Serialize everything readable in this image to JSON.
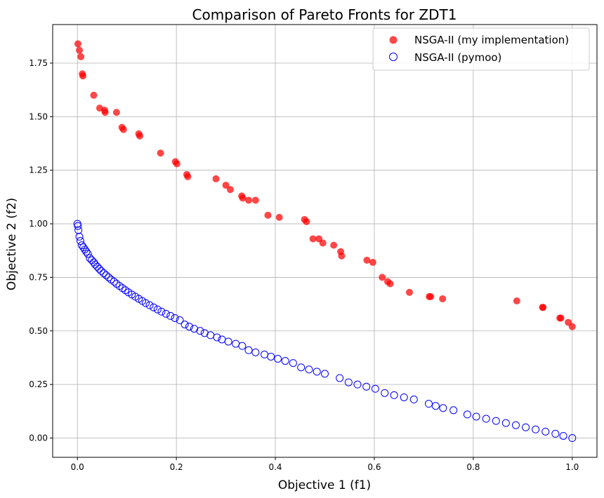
{
  "chart_data": {
    "type": "scatter",
    "title": "Comparison of Pareto Fronts for ZDT1",
    "xlabel": "Objective 1 (f1)",
    "ylabel": "Objective 2 (f2)",
    "xlim": [
      -0.05,
      1.05
    ],
    "ylim": [
      -0.09,
      1.93
    ],
    "xticks": [
      0.0,
      0.2,
      0.4,
      0.6,
      0.8,
      1.0
    ],
    "xtick_labels": [
      "0.0",
      "0.2",
      "0.4",
      "0.6",
      "0.8",
      "1.0"
    ],
    "yticks": [
      0.0,
      0.25,
      0.5,
      0.75,
      1.0,
      1.25,
      1.5,
      1.75
    ],
    "ytick_labels": [
      "0.00",
      "0.25",
      "0.50",
      "0.75",
      "1.00",
      "1.25",
      "1.50",
      "1.75"
    ],
    "grid": true,
    "legend_position": "top-right",
    "series": [
      {
        "name": "NSGA-II (my implementation)",
        "marker": "filled-circle",
        "color": "#ff0000",
        "points": [
          [
            0.001,
            1.84
          ],
          [
            0.004,
            1.81
          ],
          [
            0.007,
            1.78
          ],
          [
            0.01,
            1.7
          ],
          [
            0.011,
            1.69
          ],
          [
            0.033,
            1.6
          ],
          [
            0.045,
            1.54
          ],
          [
            0.055,
            1.53
          ],
          [
            0.056,
            1.52
          ],
          [
            0.079,
            1.52
          ],
          [
            0.09,
            1.45
          ],
          [
            0.093,
            1.44
          ],
          [
            0.124,
            1.42
          ],
          [
            0.126,
            1.41
          ],
          [
            0.168,
            1.33
          ],
          [
            0.198,
            1.29
          ],
          [
            0.201,
            1.28
          ],
          [
            0.221,
            1.23
          ],
          [
            0.223,
            1.22
          ],
          [
            0.28,
            1.21
          ],
          [
            0.3,
            1.18
          ],
          [
            0.309,
            1.16
          ],
          [
            0.332,
            1.13
          ],
          [
            0.334,
            1.12
          ],
          [
            0.346,
            1.11
          ],
          [
            0.36,
            1.11
          ],
          [
            0.385,
            1.04
          ],
          [
            0.408,
            1.03
          ],
          [
            0.459,
            1.02
          ],
          [
            0.463,
            1.01
          ],
          [
            0.476,
            0.93
          ],
          [
            0.488,
            0.93
          ],
          [
            0.496,
            0.91
          ],
          [
            0.518,
            0.9
          ],
          [
            0.532,
            0.87
          ],
          [
            0.534,
            0.85
          ],
          [
            0.585,
            0.83
          ],
          [
            0.597,
            0.82
          ],
          [
            0.616,
            0.75
          ],
          [
            0.627,
            0.73
          ],
          [
            0.632,
            0.72
          ],
          [
            0.671,
            0.68
          ],
          [
            0.711,
            0.66
          ],
          [
            0.714,
            0.66
          ],
          [
            0.738,
            0.65
          ],
          [
            0.888,
            0.64
          ],
          [
            0.94,
            0.61
          ],
          [
            0.941,
            0.61
          ],
          [
            0.975,
            0.56
          ],
          [
            0.977,
            0.56
          ],
          [
            0.992,
            0.54
          ],
          [
            1.0,
            0.52
          ]
        ]
      },
      {
        "name": "NSGA-II (pymoo)",
        "marker": "hollow-circle",
        "color": "#0000ff",
        "points": [
          [
            0.0,
            1.0
          ],
          [
            0.001,
            0.99
          ],
          [
            0.002,
            0.97
          ],
          [
            0.004,
            0.94
          ],
          [
            0.006,
            0.92
          ],
          [
            0.009,
            0.9
          ],
          [
            0.012,
            0.89
          ],
          [
            0.015,
            0.88
          ],
          [
            0.018,
            0.87
          ],
          [
            0.021,
            0.86
          ],
          [
            0.025,
            0.84
          ],
          [
            0.029,
            0.83
          ],
          [
            0.033,
            0.82
          ],
          [
            0.036,
            0.81
          ],
          [
            0.04,
            0.8
          ],
          [
            0.044,
            0.79
          ],
          [
            0.048,
            0.78
          ],
          [
            0.053,
            0.77
          ],
          [
            0.058,
            0.76
          ],
          [
            0.063,
            0.75
          ],
          [
            0.068,
            0.74
          ],
          [
            0.074,
            0.73
          ],
          [
            0.079,
            0.72
          ],
          [
            0.085,
            0.71
          ],
          [
            0.091,
            0.7
          ],
          [
            0.097,
            0.69
          ],
          [
            0.103,
            0.68
          ],
          [
            0.11,
            0.67
          ],
          [
            0.117,
            0.66
          ],
          [
            0.124,
            0.65
          ],
          [
            0.131,
            0.64
          ],
          [
            0.138,
            0.63
          ],
          [
            0.146,
            0.62
          ],
          [
            0.154,
            0.61
          ],
          [
            0.162,
            0.6
          ],
          [
            0.17,
            0.59
          ],
          [
            0.179,
            0.58
          ],
          [
            0.188,
            0.57
          ],
          [
            0.197,
            0.56
          ],
          [
            0.207,
            0.55
          ],
          [
            0.217,
            0.53
          ],
          [
            0.226,
            0.52
          ],
          [
            0.236,
            0.51
          ],
          [
            0.248,
            0.5
          ],
          [
            0.257,
            0.49
          ],
          [
            0.269,
            0.48
          ],
          [
            0.282,
            0.47
          ],
          [
            0.292,
            0.46
          ],
          [
            0.305,
            0.45
          ],
          [
            0.32,
            0.44
          ],
          [
            0.333,
            0.43
          ],
          [
            0.346,
            0.41
          ],
          [
            0.36,
            0.4
          ],
          [
            0.378,
            0.39
          ],
          [
            0.391,
            0.38
          ],
          [
            0.405,
            0.37
          ],
          [
            0.42,
            0.36
          ],
          [
            0.436,
            0.35
          ],
          [
            0.452,
            0.33
          ],
          [
            0.468,
            0.32
          ],
          [
            0.484,
            0.31
          ],
          [
            0.5,
            0.3
          ],
          [
            0.53,
            0.28
          ],
          [
            0.548,
            0.26
          ],
          [
            0.566,
            0.25
          ],
          [
            0.584,
            0.24
          ],
          [
            0.602,
            0.23
          ],
          [
            0.621,
            0.21
          ],
          [
            0.64,
            0.2
          ],
          [
            0.66,
            0.19
          ],
          [
            0.68,
            0.18
          ],
          [
            0.71,
            0.16
          ],
          [
            0.724,
            0.15
          ],
          [
            0.739,
            0.14
          ],
          [
            0.76,
            0.13
          ],
          [
            0.788,
            0.11
          ],
          [
            0.806,
            0.1
          ],
          [
            0.826,
            0.09
          ],
          [
            0.846,
            0.08
          ],
          [
            0.866,
            0.07
          ],
          [
            0.886,
            0.06
          ],
          [
            0.906,
            0.05
          ],
          [
            0.926,
            0.04
          ],
          [
            0.946,
            0.03
          ],
          [
            0.966,
            0.02
          ],
          [
            0.982,
            0.01
          ],
          [
            1.0,
            0.0
          ]
        ]
      }
    ]
  }
}
